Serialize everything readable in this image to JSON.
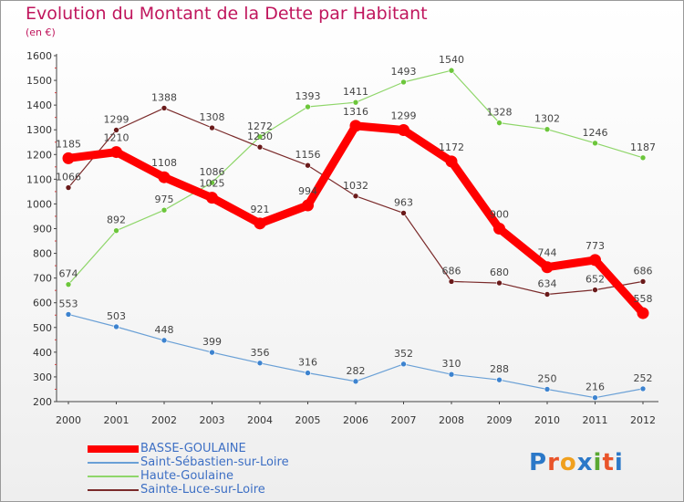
{
  "header": {
    "title": "Evolution du Montant de la Dette par Habitant",
    "subtitle": "(en €)"
  },
  "logo": {
    "letters": [
      "P",
      "r",
      "o",
      "x",
      "i",
      "t",
      "i"
    ],
    "colors": [
      "#2b78c8",
      "#e9542a",
      "#f0a01e",
      "#2b78c8",
      "#5aa832",
      "#e9542a",
      "#2b78c8"
    ]
  },
  "chart_data": {
    "type": "line",
    "title": "Evolution du Montant de la Dette par Habitant",
    "ylabel": "(en €)",
    "xlabel": "",
    "x": [
      "2000",
      "2001",
      "2002",
      "2003",
      "2004",
      "2005",
      "2006",
      "2007",
      "2008",
      "2009",
      "2010",
      "2011",
      "2012"
    ],
    "ylim": [
      200,
      1600
    ],
    "yticks": [
      200,
      300,
      400,
      500,
      600,
      700,
      800,
      900,
      1000,
      1100,
      1200,
      1300,
      1400,
      1500,
      1600
    ],
    "grid": false,
    "legend_position": "bottom-left",
    "series": [
      {
        "name": "BASSE-GOULAINE",
        "color": "#ff0000",
        "values": [
          1185,
          1210,
          1108,
          1025,
          921,
          994,
          1316,
          1299,
          1172,
          900,
          744,
          773,
          558
        ]
      },
      {
        "name": "Saint-Sébastien-sur-Loire",
        "color": "#6aa0d6",
        "values": [
          553,
          503,
          448,
          399,
          356,
          316,
          282,
          352,
          310,
          288,
          250,
          216,
          252
        ]
      },
      {
        "name": "Haute-Goulaine",
        "color": "#8fd66a",
        "values": [
          674,
          892,
          975,
          1086,
          1272,
          1393,
          1411,
          1493,
          1540,
          1328,
          1302,
          1246,
          1187
        ]
      },
      {
        "name": "Sainte-Luce-sur-Loire",
        "color": "#7a2a2a",
        "values": [
          1066,
          1299,
          1388,
          1308,
          1230,
          1156,
          1032,
          963,
          686,
          680,
          634,
          652,
          686
        ]
      }
    ]
  }
}
